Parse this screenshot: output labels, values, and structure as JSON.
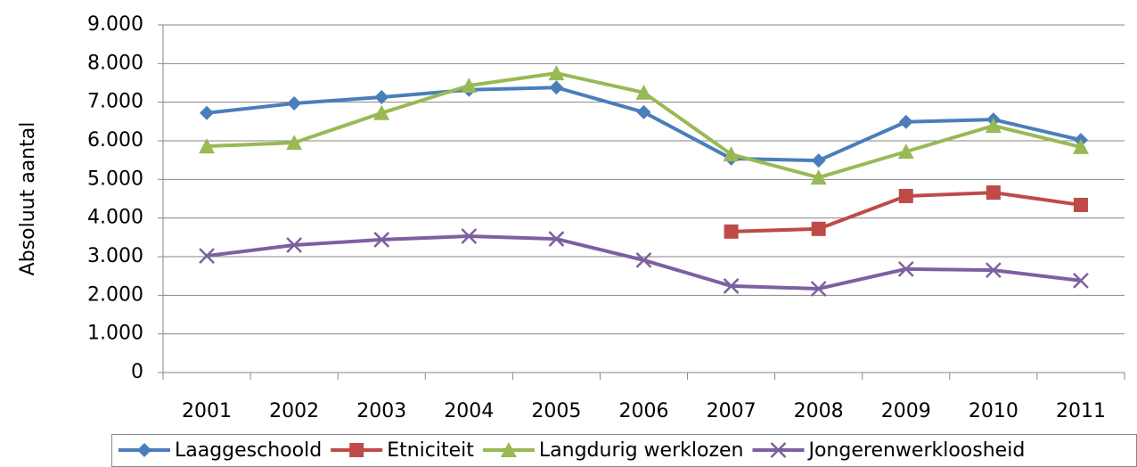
{
  "chart_data": {
    "type": "line",
    "y_label": "Absoluut aantal",
    "categories": [
      "2001",
      "2002",
      "2003",
      "2004",
      "2005",
      "2006",
      "2007",
      "2008",
      "2009",
      "2010",
      "2011"
    ],
    "series": [
      {
        "name": "Laaggeschoold",
        "color": "#4a7ebb",
        "marker": "diamond",
        "values": [
          6720,
          6970,
          7130,
          7320,
          7380,
          6740,
          5540,
          5490,
          6490,
          6550,
          6020
        ]
      },
      {
        "name": "Etniciteit",
        "color": "#be4b48",
        "marker": "square",
        "values": [
          null,
          null,
          null,
          null,
          null,
          null,
          3650,
          3720,
          4570,
          4660,
          4340
        ]
      },
      {
        "name": "Langdurig werklozen",
        "color": "#98b954",
        "marker": "triangle",
        "values": [
          5860,
          5950,
          6720,
          7430,
          7750,
          7250,
          5650,
          5050,
          5720,
          6390,
          5840
        ]
      },
      {
        "name": "Jongerenwerkloosheid",
        "color": "#7d60a0",
        "marker": "x",
        "values": [
          3020,
          3300,
          3440,
          3530,
          3460,
          2910,
          2240,
          2170,
          2680,
          2650,
          2380
        ]
      }
    ],
    "ylim": [
      0,
      9000
    ],
    "yticks": [
      0,
      {
        "value": 1000,
        "label": "1.000"
      },
      {
        "value": 2000,
        "label": "2.000"
      },
      {
        "value": 3000,
        "label": "3.000"
      },
      {
        "value": 4000,
        "label": "4.000"
      },
      {
        "value": 5000,
        "label": "5.000"
      },
      {
        "value": 6000,
        "label": "6.000"
      },
      {
        "value": 7000,
        "label": "7.000"
      },
      {
        "value": 8000,
        "label": "8.000"
      },
      {
        "value": 9000,
        "label": "9.000"
      }
    ],
    "grid": true,
    "legend": "bottom"
  }
}
